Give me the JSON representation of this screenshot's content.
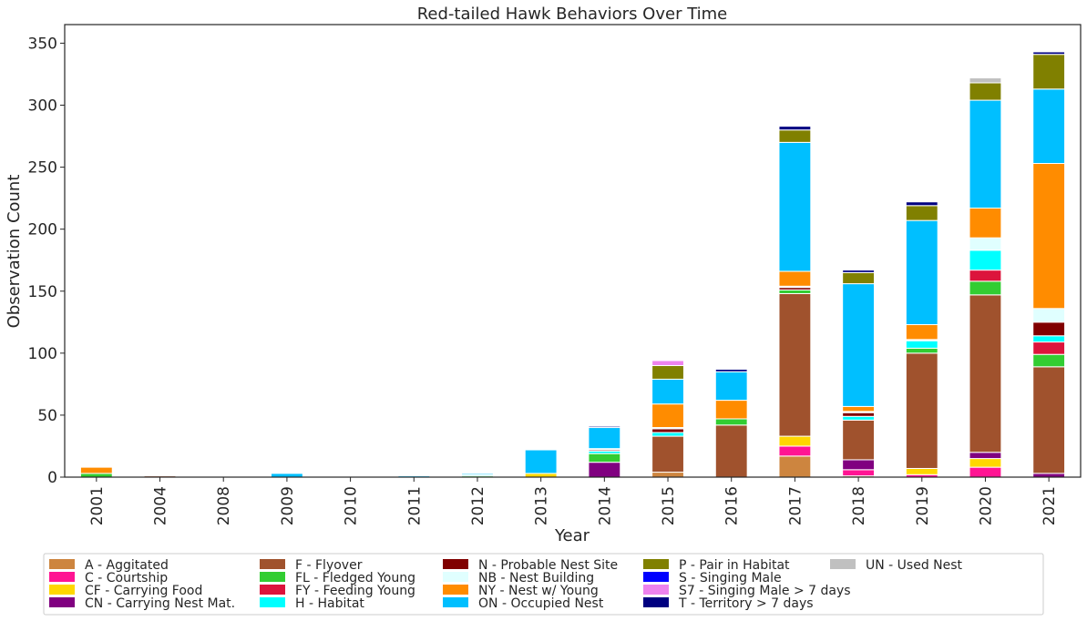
{
  "chart_data": {
    "type": "bar",
    "stacked": true,
    "title": "Red-tailed Hawk Behaviors Over Time",
    "xlabel": "Year",
    "ylabel": "Observation Count",
    "ylim": [
      0,
      365
    ],
    "yticks": [
      0,
      50,
      100,
      150,
      200,
      250,
      300,
      350
    ],
    "grid": false,
    "legend_position": "bottom-center",
    "categories": [
      "2001",
      "2004",
      "2008",
      "2009",
      "2010",
      "2011",
      "2012",
      "2013",
      "2014",
      "2015",
      "2016",
      "2017",
      "2018",
      "2019",
      "2020",
      "2021"
    ],
    "series": [
      {
        "name": "A - Aggitated",
        "color": "#cd853f",
        "values": [
          0,
          0,
          0,
          0,
          0,
          0,
          0,
          0,
          0,
          4,
          0,
          17,
          1,
          0,
          0,
          0
        ]
      },
      {
        "name": "C - Courtship",
        "color": "#ff1493",
        "values": [
          0,
          0,
          0,
          0,
          0,
          0,
          0,
          0,
          0,
          0,
          0,
          8,
          5,
          2,
          8,
          0
        ]
      },
      {
        "name": "CF - Carrying Food",
        "color": "#ffd700",
        "values": [
          0,
          0,
          0,
          0,
          0,
          0,
          0,
          3,
          0,
          0,
          0,
          8,
          0,
          5,
          7,
          0
        ]
      },
      {
        "name": "CN - Carrying Nest Mat.",
        "color": "#800080",
        "values": [
          0,
          0,
          0,
          0,
          0,
          0,
          0,
          0,
          12,
          0,
          0,
          0,
          8,
          0,
          5,
          3
        ]
      },
      {
        "name": "F - Flyover",
        "color": "#a0522d",
        "values": [
          0,
          1,
          0,
          0,
          0,
          0,
          0,
          0,
          0,
          29,
          42,
          115,
          32,
          93,
          127,
          86
        ]
      },
      {
        "name": "FL - Fledged Young",
        "color": "#32cd32",
        "values": [
          3,
          0,
          0,
          0,
          0,
          0,
          1,
          0,
          7,
          0,
          5,
          3,
          0,
          4,
          11,
          10
        ]
      },
      {
        "name": "FY - Feeding Young",
        "color": "#dc143c",
        "values": [
          0,
          0,
          0,
          0,
          0,
          0,
          0,
          0,
          0,
          0,
          0,
          0,
          0,
          0,
          9,
          10
        ]
      },
      {
        "name": "H - Habitat",
        "color": "#00ffff",
        "values": [
          0,
          0,
          0,
          0,
          0,
          0,
          1,
          0,
          2,
          3,
          0,
          0,
          3,
          6,
          16,
          5
        ]
      },
      {
        "name": "N - Probable Nest Site",
        "color": "#800000",
        "values": [
          0,
          0,
          0,
          0,
          0,
          0,
          0,
          0,
          1,
          3,
          0,
          2,
          3,
          0,
          0,
          11
        ]
      },
      {
        "name": "NB - Nest Building",
        "color": "#e0ffff",
        "values": [
          0,
          0,
          0,
          0,
          0,
          0,
          0,
          0,
          1,
          1,
          0,
          1,
          1,
          1,
          10,
          11
        ]
      },
      {
        "name": "NY - Nest w/ Young",
        "color": "#ff8c00",
        "values": [
          5,
          0,
          0,
          0,
          0,
          0,
          0,
          0,
          0,
          19,
          15,
          12,
          4,
          12,
          24,
          117
        ]
      },
      {
        "name": "ON - Occupied Nest",
        "color": "#00bfff",
        "values": [
          0,
          0,
          0,
          3,
          0,
          1,
          1,
          19,
          17,
          20,
          23,
          104,
          99,
          84,
          87,
          60
        ]
      },
      {
        "name": "P - Pair in Habitat",
        "color": "#808000",
        "values": [
          0,
          0,
          0,
          0,
          0,
          0,
          0,
          0,
          0,
          11,
          0,
          10,
          9,
          12,
          14,
          28
        ]
      },
      {
        "name": "S - Singing Male",
        "color": "#0000ff",
        "values": [
          0,
          0,
          0,
          0,
          0,
          0,
          0,
          0,
          0,
          0,
          0,
          0,
          0,
          0,
          0,
          0
        ]
      },
      {
        "name": "S7 - Singing Male > 7 days",
        "color": "#ee82ee",
        "values": [
          0,
          0,
          0,
          0,
          0,
          0,
          0,
          0,
          0,
          4,
          0,
          0,
          0,
          0,
          0,
          0
        ]
      },
      {
        "name": "T - Territory > 7 days",
        "color": "#000080",
        "values": [
          0,
          0,
          0,
          0,
          0,
          0,
          0,
          0,
          1,
          0,
          2,
          3,
          2,
          3,
          0,
          2
        ]
      },
      {
        "name": "UN - Used Nest",
        "color": "#c0c0c0",
        "values": [
          0,
          0,
          0,
          0,
          0,
          0,
          0,
          0,
          0,
          0,
          0,
          0,
          0,
          0,
          4,
          0
        ]
      }
    ]
  }
}
